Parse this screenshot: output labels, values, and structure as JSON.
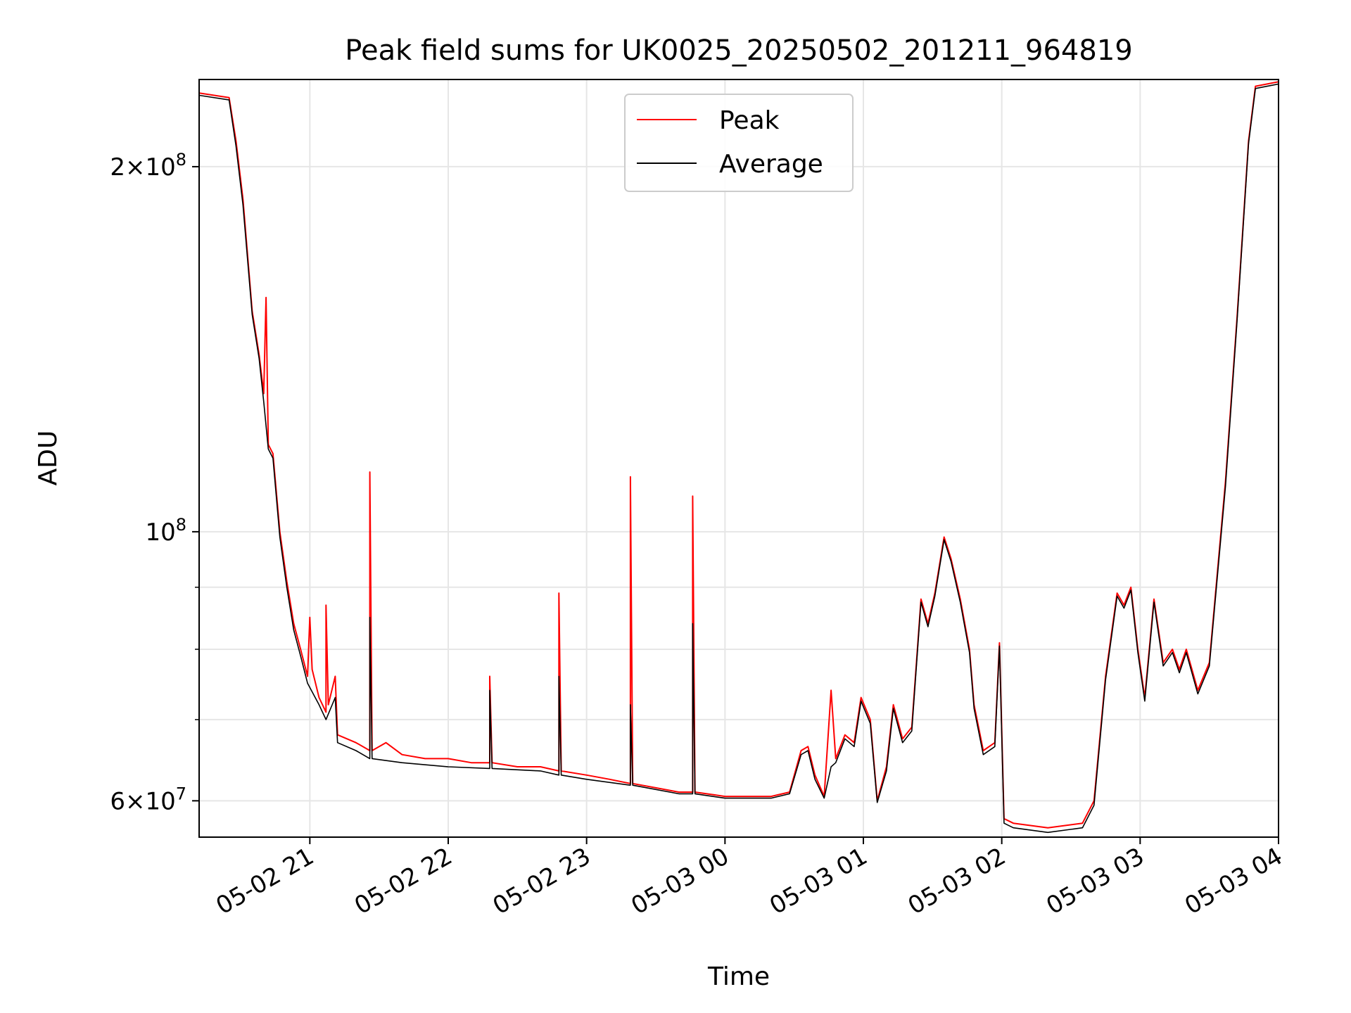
{
  "chart_data": {
    "type": "line",
    "title": "Peak field sums for UK0025_20250502_201211_964819",
    "xlabel": "Time",
    "ylabel": "ADU",
    "x_unit": "time (2025, MM-DD HH)",
    "xlim": [
      "05-02 20:12",
      "05-03 04:00"
    ],
    "ylim": [
      56000000,
      236000000
    ],
    "yscale": "log",
    "x_ticks": [
      "05-02 21",
      "05-02 22",
      "05-02 23",
      "05-03 00",
      "05-03 01",
      "05-03 02",
      "05-03 03",
      "05-03 04"
    ],
    "x_tick_times": [
      "05-02 21:00",
      "05-02 22:00",
      "05-02 23:00",
      "05-03 00:00",
      "05-03 01:00",
      "05-03 02:00",
      "05-03 03:00",
      "05-03 04:00"
    ],
    "y_major_ticks": [
      {
        "value": 60000000,
        "base": "6",
        "exp": "7"
      },
      {
        "value": 100000000,
        "base": "",
        "exp": "8"
      },
      {
        "value": 200000000,
        "base": "2",
        "exp": "8"
      }
    ],
    "y_minor_ticks": [
      70000000,
      80000000,
      90000000
    ],
    "grid": true,
    "legend": "top-center",
    "series": [
      {
        "name": "Peak",
        "color": "#ff0000",
        "points": [
          [
            "05-02 20:12",
            230000000
          ],
          [
            "05-02 20:25",
            228000000
          ],
          [
            "05-02 20:28",
            210000000
          ],
          [
            "05-02 20:31",
            188000000
          ],
          [
            "05-02 20:35",
            152000000
          ],
          [
            "05-02 20:38",
            140000000
          ],
          [
            "05-02 20:40",
            130000000
          ],
          [
            "05-02 20:41",
            156000000
          ],
          [
            "05-02 20:42",
            118000000
          ],
          [
            "05-02 20:44",
            116000000
          ],
          [
            "05-02 20:47",
            100000000
          ],
          [
            "05-02 20:50",
            91000000
          ],
          [
            "05-02 20:53",
            84000000
          ],
          [
            "05-02 20:56",
            80000000
          ],
          [
            "05-02 20:59",
            76000000
          ],
          [
            "05-02 21:00",
            85000000
          ],
          [
            "05-02 21:01",
            77000000
          ],
          [
            "05-02 21:04",
            73000000
          ],
          [
            "05-02 21:07",
            71000000
          ],
          [
            "05-02 21:07",
            87000000
          ],
          [
            "05-02 21:08",
            72000000
          ],
          [
            "05-02 21:11",
            76000000
          ],
          [
            "05-02 21:12",
            68000000
          ],
          [
            "05-02 21:20",
            67000000
          ],
          [
            "05-02 21:26",
            66000000
          ],
          [
            "05-02 21:26",
            112000000
          ],
          [
            "05-02 21:27",
            66000000
          ],
          [
            "05-02 21:33",
            67000000
          ],
          [
            "05-02 21:40",
            65500000
          ],
          [
            "05-02 21:50",
            65000000
          ],
          [
            "05-02 22:00",
            65000000
          ],
          [
            "05-02 22:10",
            64500000
          ],
          [
            "05-02 22:18",
            64500000
          ],
          [
            "05-02 22:18",
            76000000
          ],
          [
            "05-02 22:19",
            64500000
          ],
          [
            "05-02 22:30",
            64000000
          ],
          [
            "05-02 22:40",
            64000000
          ],
          [
            "05-02 22:48",
            63500000
          ],
          [
            "05-02 22:48",
            89000000
          ],
          [
            "05-02 22:49",
            63500000
          ],
          [
            "05-02 23:00",
            63000000
          ],
          [
            "05-02 23:10",
            62500000
          ],
          [
            "05-02 23:19",
            62000000
          ],
          [
            "05-02 23:19",
            111000000
          ],
          [
            "05-02 23:20",
            62000000
          ],
          [
            "05-02 23:30",
            61500000
          ],
          [
            "05-02 23:40",
            61000000
          ],
          [
            "05-02 23:46",
            61000000
          ],
          [
            "05-02 23:46",
            107000000
          ],
          [
            "05-02 23:47",
            61000000
          ],
          [
            "05-03 00:00",
            60500000
          ],
          [
            "05-03 00:20",
            60500000
          ],
          [
            "05-03 00:28",
            61000000
          ],
          [
            "05-03 00:33",
            66000000
          ],
          [
            "05-03 00:36",
            66500000
          ],
          [
            "05-03 00:39",
            63000000
          ],
          [
            "05-03 00:43",
            60500000
          ],
          [
            "05-03 00:46",
            74000000
          ],
          [
            "05-03 00:48",
            65000000
          ],
          [
            "05-03 00:52",
            68000000
          ],
          [
            "05-03 00:56",
            67000000
          ],
          [
            "05-03 00:59",
            73000000
          ],
          [
            "05-03 01:03",
            70000000
          ],
          [
            "05-03 01:06",
            60000000
          ],
          [
            "05-03 01:10",
            64000000
          ],
          [
            "05-03 01:13",
            72000000
          ],
          [
            "05-03 01:17",
            67500000
          ],
          [
            "05-03 01:21",
            69000000
          ],
          [
            "05-03 01:25",
            88000000
          ],
          [
            "05-03 01:28",
            84000000
          ],
          [
            "05-03 01:31",
            89000000
          ],
          [
            "05-03 01:35",
            99000000
          ],
          [
            "05-03 01:38",
            95000000
          ],
          [
            "05-03 01:42",
            88000000
          ],
          [
            "05-03 01:46",
            80000000
          ],
          [
            "05-03 01:48",
            72000000
          ],
          [
            "05-03 01:52",
            66000000
          ],
          [
            "05-03 01:57",
            67000000
          ],
          [
            "05-03 01:59",
            81000000
          ],
          [
            "05-03 02:01",
            58000000
          ],
          [
            "05-03 02:05",
            57500000
          ],
          [
            "05-03 02:20",
            57000000
          ],
          [
            "05-03 02:35",
            57500000
          ],
          [
            "05-03 02:40",
            60000000
          ],
          [
            "05-03 02:45",
            76000000
          ],
          [
            "05-03 02:50",
            89000000
          ],
          [
            "05-03 02:53",
            87000000
          ],
          [
            "05-03 02:56",
            90000000
          ],
          [
            "05-03 02:59",
            80000000
          ],
          [
            "05-03 03:02",
            73000000
          ],
          [
            "05-03 03:06",
            88000000
          ],
          [
            "05-03 03:10",
            78000000
          ],
          [
            "05-03 03:14",
            80000000
          ],
          [
            "05-03 03:17",
            77000000
          ],
          [
            "05-03 03:20",
            80000000
          ],
          [
            "05-03 03:25",
            74000000
          ],
          [
            "05-03 03:30",
            78000000
          ],
          [
            "05-03 03:37",
            110000000
          ],
          [
            "05-03 03:42",
            150000000
          ],
          [
            "05-03 03:47",
            210000000
          ],
          [
            "05-03 03:50",
            233000000
          ],
          [
            "05-03 04:00",
            235000000
          ]
        ]
      },
      {
        "name": "Average",
        "color": "#000000",
        "points": [
          [
            "05-02 20:12",
            229000000
          ],
          [
            "05-02 20:25",
            227000000
          ],
          [
            "05-02 20:28",
            208000000
          ],
          [
            "05-02 20:31",
            186000000
          ],
          [
            "05-02 20:35",
            151000000
          ],
          [
            "05-02 20:38",
            139000000
          ],
          [
            "05-02 20:40",
            128000000
          ],
          [
            "05-02 20:42",
            117000000
          ],
          [
            "05-02 20:44",
            115000000
          ],
          [
            "05-02 20:47",
            99000000
          ],
          [
            "05-02 20:50",
            90000000
          ],
          [
            "05-02 20:53",
            83000000
          ],
          [
            "05-02 20:56",
            79000000
          ],
          [
            "05-02 20:59",
            75000000
          ],
          [
            "05-02 21:04",
            72000000
          ],
          [
            "05-02 21:07",
            70000000
          ],
          [
            "05-02 21:11",
            73000000
          ],
          [
            "05-02 21:12",
            67000000
          ],
          [
            "05-02 21:20",
            66000000
          ],
          [
            "05-02 21:26",
            65000000
          ],
          [
            "05-02 21:26",
            85000000
          ],
          [
            "05-02 21:27",
            65000000
          ],
          [
            "05-02 21:40",
            64500000
          ],
          [
            "05-02 22:00",
            64000000
          ],
          [
            "05-02 22:18",
            63800000
          ],
          [
            "05-02 22:18",
            74000000
          ],
          [
            "05-02 22:19",
            63800000
          ],
          [
            "05-02 22:40",
            63500000
          ],
          [
            "05-02 22:48",
            63000000
          ],
          [
            "05-02 22:48",
            76000000
          ],
          [
            "05-02 22:49",
            63000000
          ],
          [
            "05-02 23:00",
            62500000
          ],
          [
            "05-02 23:19",
            61800000
          ],
          [
            "05-02 23:19",
            72000000
          ],
          [
            "05-02 23:20",
            61800000
          ],
          [
            "05-02 23:40",
            60800000
          ],
          [
            "05-02 23:46",
            60800000
          ],
          [
            "05-02 23:46",
            84000000
          ],
          [
            "05-02 23:47",
            60800000
          ],
          [
            "05-03 00:00",
            60300000
          ],
          [
            "05-03 00:20",
            60300000
          ],
          [
            "05-03 00:28",
            60800000
          ],
          [
            "05-03 00:33",
            65500000
          ],
          [
            "05-03 00:36",
            66000000
          ],
          [
            "05-03 00:39",
            62500000
          ],
          [
            "05-03 00:43",
            60300000
          ],
          [
            "05-03 00:46",
            64000000
          ],
          [
            "05-03 00:48",
            64500000
          ],
          [
            "05-03 00:52",
            67500000
          ],
          [
            "05-03 00:56",
            66500000
          ],
          [
            "05-03 00:59",
            72500000
          ],
          [
            "05-03 01:03",
            69500000
          ],
          [
            "05-03 01:06",
            59800000
          ],
          [
            "05-03 01:10",
            63500000
          ],
          [
            "05-03 01:13",
            71500000
          ],
          [
            "05-03 01:17",
            67000000
          ],
          [
            "05-03 01:21",
            68500000
          ],
          [
            "05-03 01:25",
            87500000
          ],
          [
            "05-03 01:28",
            83500000
          ],
          [
            "05-03 01:31",
            88500000
          ],
          [
            "05-03 01:35",
            98500000
          ],
          [
            "05-03 01:38",
            94500000
          ],
          [
            "05-03 01:42",
            87500000
          ],
          [
            "05-03 01:46",
            79500000
          ],
          [
            "05-03 01:48",
            71500000
          ],
          [
            "05-03 01:52",
            65500000
          ],
          [
            "05-03 01:57",
            66500000
          ],
          [
            "05-03 01:59",
            80500000
          ],
          [
            "05-03 02:01",
            57500000
          ],
          [
            "05-03 02:05",
            57000000
          ],
          [
            "05-03 02:20",
            56500000
          ],
          [
            "05-03 02:35",
            57000000
          ],
          [
            "05-03 02:40",
            59500000
          ],
          [
            "05-03 02:45",
            75500000
          ],
          [
            "05-03 02:50",
            88500000
          ],
          [
            "05-03 02:53",
            86500000
          ],
          [
            "05-03 02:56",
            89500000
          ],
          [
            "05-03 02:59",
            79500000
          ],
          [
            "05-03 03:02",
            72500000
          ],
          [
            "05-03 03:06",
            87500000
          ],
          [
            "05-03 03:10",
            77500000
          ],
          [
            "05-03 03:14",
            79500000
          ],
          [
            "05-03 03:17",
            76500000
          ],
          [
            "05-03 03:20",
            79500000
          ],
          [
            "05-03 03:25",
            73500000
          ],
          [
            "05-03 03:30",
            77500000
          ],
          [
            "05-03 03:37",
            109000000
          ],
          [
            "05-03 03:42",
            149000000
          ],
          [
            "05-03 03:47",
            209000000
          ],
          [
            "05-03 03:50",
            232000000
          ],
          [
            "05-03 04:00",
            234000000
          ]
        ]
      }
    ]
  }
}
